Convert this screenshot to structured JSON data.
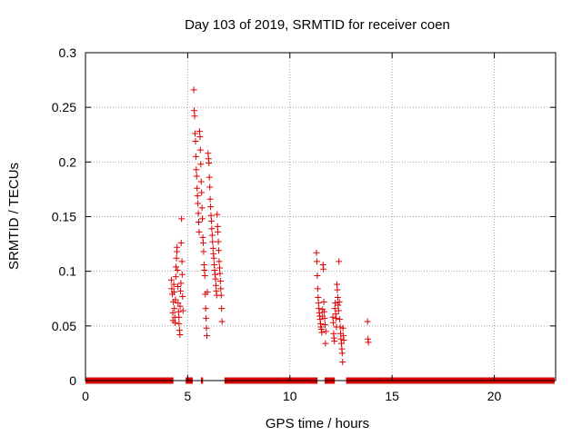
{
  "chart_data": {
    "type": "scatter",
    "title": "Day 103 of 2019, SRMTID for receiver coen",
    "xlabel": "GPS time / hours",
    "ylabel": "SRMTID / TECUs",
    "xlim": [
      0,
      23
    ],
    "ylim": [
      0,
      0.3
    ],
    "xticks": [
      0,
      5,
      10,
      15,
      20
    ],
    "xtick_labels": [
      "0",
      "5",
      "10",
      "15",
      "20"
    ],
    "yticks": [
      0,
      0.05,
      0.1,
      0.15,
      0.2,
      0.25,
      0.3
    ],
    "ytick_labels": [
      "0",
      "0.05",
      "0.1",
      "0.15",
      "0.2",
      "0.25",
      "0.3"
    ],
    "grid": true,
    "legend": "none",
    "marker": "+",
    "color": "#dd0000",
    "zero_bands": [
      [
        0.0,
        4.3
      ],
      [
        4.9,
        5.25
      ],
      [
        5.65,
        5.75
      ],
      [
        6.8,
        11.35
      ],
      [
        11.7,
        12.2
      ],
      [
        12.75,
        22.95
      ]
    ],
    "series": [
      {
        "points": [
          [
            4.2,
            0.092
          ],
          [
            4.22,
            0.084
          ],
          [
            4.25,
            0.079
          ],
          [
            4.27,
            0.062
          ],
          [
            4.28,
            0.055
          ],
          [
            4.3,
            0.072
          ],
          [
            4.32,
            0.088
          ],
          [
            4.33,
            0.081
          ],
          [
            4.35,
            0.066
          ],
          [
            4.37,
            0.058
          ],
          [
            4.38,
            0.053
          ],
          [
            4.4,
            0.074
          ],
          [
            4.42,
            0.095
          ],
          [
            4.43,
            0.104
          ],
          [
            4.45,
            0.112
          ],
          [
            4.47,
            0.118
          ],
          [
            4.48,
            0.122
          ],
          [
            4.5,
            0.101
          ],
          [
            4.52,
            0.086
          ],
          [
            4.53,
            0.071
          ],
          [
            4.55,
            0.063
          ],
          [
            4.57,
            0.058
          ],
          [
            4.58,
            0.052
          ],
          [
            4.6,
            0.046
          ],
          [
            4.62,
            0.042
          ],
          [
            4.63,
            0.068
          ],
          [
            4.65,
            0.082
          ],
          [
            4.67,
            0.089
          ],
          [
            4.68,
            0.126
          ],
          [
            4.7,
            0.148
          ],
          [
            4.72,
            0.109
          ],
          [
            4.73,
            0.097
          ],
          [
            4.75,
            0.077
          ],
          [
            4.77,
            0.064
          ],
          [
            5.3,
            0.266
          ],
          [
            5.32,
            0.247
          ],
          [
            5.34,
            0.242
          ],
          [
            5.36,
            0.226
          ],
          [
            5.38,
            0.219
          ],
          [
            5.4,
            0.205
          ],
          [
            5.42,
            0.193
          ],
          [
            5.44,
            0.187
          ],
          [
            5.46,
            0.176
          ],
          [
            5.48,
            0.169
          ],
          [
            5.5,
            0.162
          ],
          [
            5.52,
            0.153
          ],
          [
            5.54,
            0.145
          ],
          [
            5.56,
            0.136
          ],
          [
            5.58,
            0.228
          ],
          [
            5.6,
            0.223
          ],
          [
            5.62,
            0.211
          ],
          [
            5.64,
            0.198
          ],
          [
            5.66,
            0.182
          ],
          [
            5.68,
            0.172
          ],
          [
            5.7,
            0.158
          ],
          [
            5.72,
            0.148
          ],
          [
            5.74,
            0.131
          ],
          [
            5.76,
            0.126
          ],
          [
            5.78,
            0.118
          ],
          [
            5.8,
            0.106
          ],
          [
            5.82,
            0.101
          ],
          [
            5.84,
            0.096
          ],
          [
            5.86,
            0.079
          ],
          [
            5.88,
            0.066
          ],
          [
            5.9,
            0.057
          ],
          [
            5.92,
            0.048
          ],
          [
            5.94,
            0.041
          ],
          [
            5.96,
            0.081
          ],
          [
            6.0,
            0.208
          ],
          [
            6.02,
            0.203
          ],
          [
            6.04,
            0.199
          ],
          [
            6.06,
            0.186
          ],
          [
            6.08,
            0.177
          ],
          [
            6.1,
            0.166
          ],
          [
            6.12,
            0.159
          ],
          [
            6.14,
            0.151
          ],
          [
            6.16,
            0.146
          ],
          [
            6.18,
            0.139
          ],
          [
            6.2,
            0.133
          ],
          [
            6.22,
            0.127
          ],
          [
            6.24,
            0.121
          ],
          [
            6.26,
            0.116
          ],
          [
            6.28,
            0.112
          ],
          [
            6.3,
            0.106
          ],
          [
            6.32,
            0.101
          ],
          [
            6.34,
            0.097
          ],
          [
            6.36,
            0.093
          ],
          [
            6.38,
            0.087
          ],
          [
            6.4,
            0.082
          ],
          [
            6.42,
            0.078
          ],
          [
            6.44,
            0.152
          ],
          [
            6.46,
            0.141
          ],
          [
            6.48,
            0.136
          ],
          [
            6.5,
            0.127
          ],
          [
            6.52,
            0.119
          ],
          [
            6.54,
            0.109
          ],
          [
            6.56,
            0.103
          ],
          [
            6.58,
            0.098
          ],
          [
            6.6,
            0.091
          ],
          [
            6.62,
            0.084
          ],
          [
            6.64,
            0.078
          ],
          [
            6.66,
            0.066
          ],
          [
            6.68,
            0.054
          ],
          [
            11.3,
            0.117
          ],
          [
            11.32,
            0.109
          ],
          [
            11.34,
            0.096
          ],
          [
            11.36,
            0.084
          ],
          [
            11.38,
            0.076
          ],
          [
            11.4,
            0.071
          ],
          [
            11.42,
            0.066
          ],
          [
            11.44,
            0.062
          ],
          [
            11.46,
            0.059
          ],
          [
            11.48,
            0.056
          ],
          [
            11.5,
            0.052
          ],
          [
            11.52,
            0.049
          ],
          [
            11.54,
            0.047
          ],
          [
            11.56,
            0.044
          ],
          [
            11.58,
            0.059
          ],
          [
            11.6,
            0.065
          ],
          [
            11.62,
            0.106
          ],
          [
            11.64,
            0.102
          ],
          [
            11.66,
            0.072
          ],
          [
            11.68,
            0.063
          ],
          [
            11.7,
            0.057
          ],
          [
            11.72,
            0.051
          ],
          [
            11.74,
            0.034
          ],
          [
            11.76,
            0.045
          ],
          [
            12.1,
            0.058
          ],
          [
            12.12,
            0.053
          ],
          [
            12.14,
            0.043
          ],
          [
            12.16,
            0.039
          ],
          [
            12.18,
            0.036
          ],
          [
            12.2,
            0.066
          ],
          [
            12.22,
            0.071
          ],
          [
            12.24,
            0.061
          ],
          [
            12.26,
            0.057
          ],
          [
            12.28,
            0.049
          ],
          [
            12.3,
            0.088
          ],
          [
            12.32,
            0.083
          ],
          [
            12.34,
            0.076
          ],
          [
            12.36,
            0.069
          ],
          [
            12.38,
            0.064
          ],
          [
            12.4,
            0.109
          ],
          [
            12.42,
            0.072
          ],
          [
            12.44,
            0.056
          ],
          [
            12.46,
            0.049
          ],
          [
            12.48,
            0.043
          ],
          [
            12.5,
            0.038
          ],
          [
            12.52,
            0.034
          ],
          [
            12.54,
            0.029
          ],
          [
            12.56,
            0.025
          ],
          [
            12.58,
            0.017
          ],
          [
            12.6,
            0.048
          ],
          [
            12.62,
            0.041
          ],
          [
            12.64,
            0.037
          ],
          [
            13.8,
            0.054
          ],
          [
            13.82,
            0.038
          ],
          [
            13.84,
            0.035
          ]
        ]
      }
    ]
  }
}
